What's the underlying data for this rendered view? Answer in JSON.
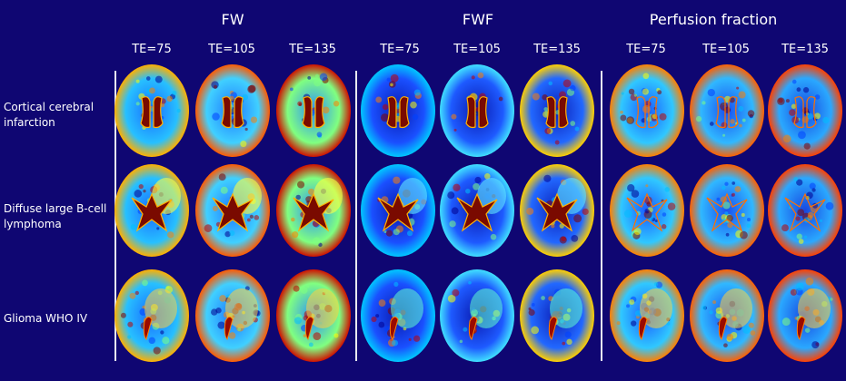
{
  "groups": [
    {
      "title": "FW",
      "te": [
        "TE=75",
        "TE=105",
        "TE=135"
      ]
    },
    {
      "title": "FWF",
      "te": [
        "TE=75",
        "TE=105",
        "TE=135"
      ]
    },
    {
      "title": "Perfusion fraction",
      "te": [
        "TE=75",
        "TE=105",
        "TE=135"
      ]
    }
  ],
  "rows": [
    {
      "label": "Cortical cerebral infarction"
    },
    {
      "label": "Diffuse large B-cell lymphoma"
    },
    {
      "label": "Glioma WHO IV"
    }
  ],
  "colormap": [
    "#00008f",
    "#0040ff",
    "#00c0ff",
    "#80ff80",
    "#ffff00",
    "#ff8000",
    "#c00000",
    "#800000"
  ],
  "background": "#0f0672"
}
